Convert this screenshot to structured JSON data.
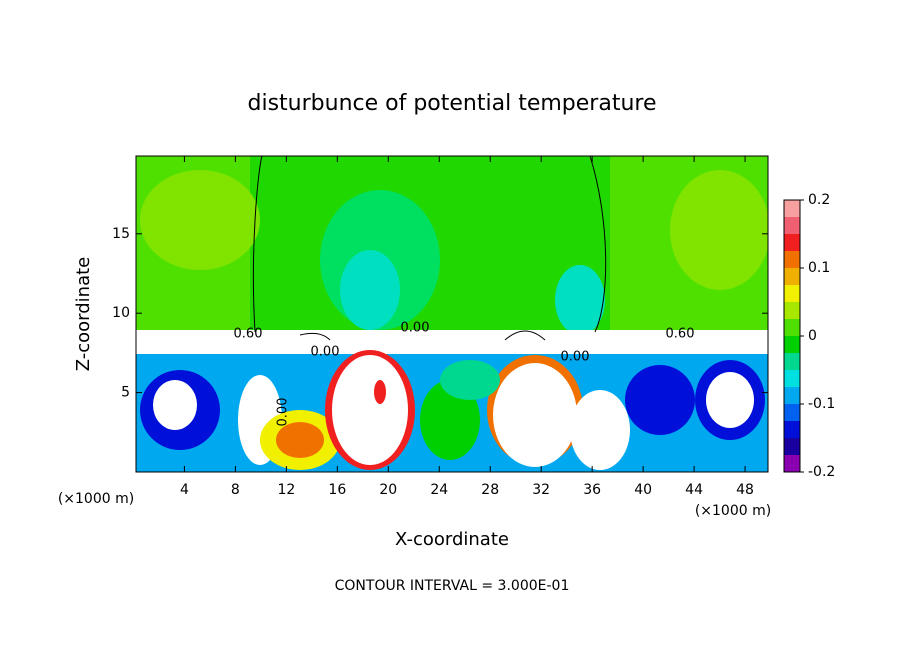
{
  "chart_data": {
    "type": "contour",
    "title": "disturbunce of potential temperature",
    "x_label": "X-coordinate",
    "y_label": "Z-coordinate",
    "x_unit_left": "(×1000 m)",
    "x_unit_right": "(×1000 m)",
    "footnote": "CONTOUR INTERVAL = 3.000E-01",
    "xlim": [
      0.2,
      49.8
    ],
    "xticks": [
      4,
      8,
      12,
      16,
      20,
      24,
      28,
      32,
      36,
      40,
      44,
      48
    ],
    "ylim": [
      0,
      19.9
    ],
    "yticks": [
      5,
      10,
      15
    ],
    "clim": [
      -0.2,
      0.2
    ],
    "cticks": [
      -0.2,
      -0.1,
      0,
      0.1,
      0.2
    ],
    "colorscale": [
      "#8a00b0",
      "#1a00a0",
      "#0010d8",
      "#0060f0",
      "#00a8f0",
      "#00e0e0",
      "#00d890",
      "#00d000",
      "#50e000",
      "#a8e800",
      "#f0f000",
      "#f0b000",
      "#f07000",
      "#f02020",
      "#f06070",
      "#f8a0a0"
    ],
    "contour_labels": [
      "0.60",
      "0.00",
      "0.60",
      "0.00",
      "0.00",
      "0.00"
    ]
  }
}
